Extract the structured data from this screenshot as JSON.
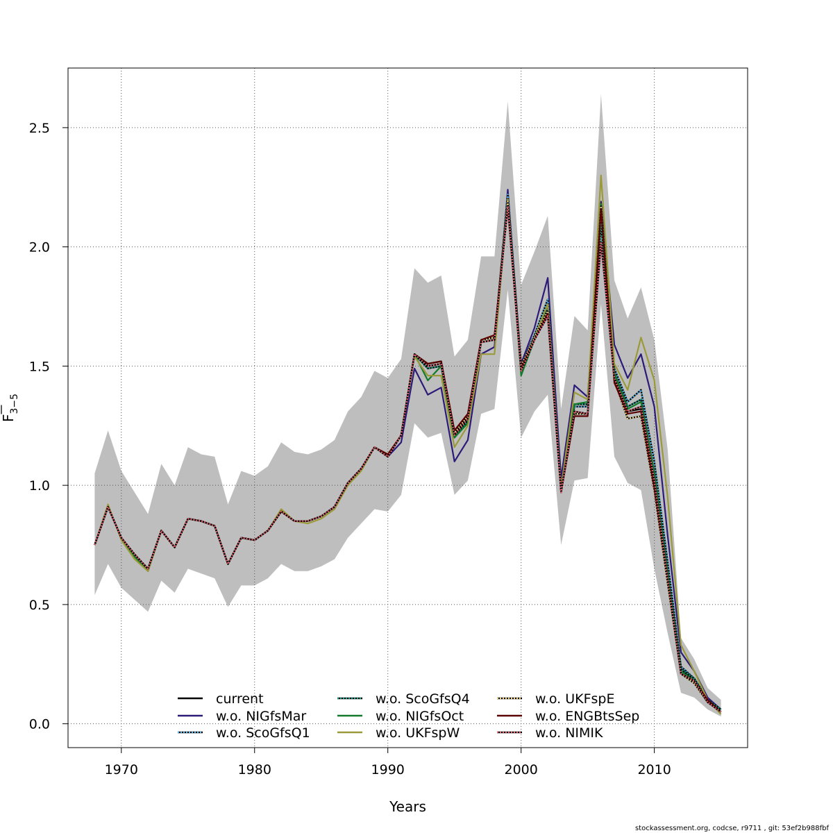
{
  "chart_data": {
    "type": "line",
    "xlabel": "Years",
    "ylabel_base": "F",
    "ylabel_sub": "3−5",
    "xlim": [
      1966,
      2017
    ],
    "ylim": [
      -0.1,
      2.75
    ],
    "xticks": [
      1970,
      1980,
      1990,
      2000,
      2010
    ],
    "yticks": [
      0.0,
      0.5,
      1.0,
      1.5,
      2.0,
      2.5
    ],
    "ytick_labels": [
      "0.0",
      "0.5",
      "1.0",
      "1.5",
      "2.0",
      "2.5"
    ],
    "grid": true,
    "legend_position": "bottom-center",
    "x": [
      1968,
      1969,
      1970,
      1971,
      1972,
      1973,
      1974,
      1975,
      1976,
      1977,
      1978,
      1979,
      1980,
      1981,
      1982,
      1983,
      1984,
      1985,
      1986,
      1987,
      1988,
      1989,
      1990,
      1991,
      1992,
      1993,
      1994,
      1995,
      1996,
      1997,
      1998,
      1999,
      2000,
      2001,
      2002,
      2003,
      2004,
      2005,
      2006,
      2007,
      2008,
      2009,
      2010,
      2011,
      2012,
      2013,
      2014,
      2015
    ],
    "band": {
      "color": "#bebebe",
      "upper": [
        1.05,
        1.23,
        1.06,
        0.97,
        0.88,
        1.09,
        1.0,
        1.16,
        1.13,
        1.12,
        0.92,
        1.06,
        1.04,
        1.08,
        1.18,
        1.14,
        1.13,
        1.15,
        1.19,
        1.31,
        1.37,
        1.48,
        1.45,
        1.53,
        1.91,
        1.85,
        1.88,
        1.54,
        1.61,
        1.96,
        1.96,
        2.61,
        1.84,
        1.98,
        2.13,
        1.32,
        1.71,
        1.65,
        2.64,
        1.86,
        1.7,
        1.83,
        1.61,
        1.15,
        0.36,
        0.27,
        0.15,
        0.1
      ],
      "lower": [
        0.54,
        0.67,
        0.57,
        0.52,
        0.47,
        0.6,
        0.55,
        0.65,
        0.63,
        0.61,
        0.49,
        0.58,
        0.58,
        0.61,
        0.67,
        0.64,
        0.64,
        0.66,
        0.69,
        0.78,
        0.84,
        0.9,
        0.89,
        0.96,
        1.26,
        1.2,
        1.22,
        0.96,
        1.02,
        1.3,
        1.32,
        1.82,
        1.2,
        1.31,
        1.38,
        0.75,
        1.02,
        1.03,
        1.76,
        1.12,
        1.01,
        0.98,
        0.65,
        0.38,
        0.13,
        0.11,
        0.06,
        0.03
      ]
    },
    "series": [
      {
        "name": "current",
        "color": "#000000",
        "dashed": false,
        "values": [
          0.75,
          0.91,
          0.78,
          0.71,
          0.65,
          0.81,
          0.74,
          0.86,
          0.85,
          0.83,
          0.67,
          0.78,
          0.77,
          0.81,
          0.89,
          0.85,
          0.85,
          0.87,
          0.91,
          1.01,
          1.07,
          1.16,
          1.12,
          1.21,
          1.55,
          1.51,
          1.52,
          1.22,
          1.29,
          1.61,
          1.62,
          2.19,
          1.5,
          1.62,
          1.73,
          0.98,
          1.3,
          1.3,
          2.17,
          1.45,
          1.31,
          1.32,
          1.02,
          0.62,
          0.22,
          0.19,
          0.1,
          0.06
        ]
      },
      {
        "name": "w.o. NIGfsMar",
        "color": "#2c1a78",
        "dashed": false,
        "values": [
          0.75,
          0.91,
          0.78,
          0.71,
          0.65,
          0.81,
          0.74,
          0.86,
          0.85,
          0.83,
          0.67,
          0.78,
          0.77,
          0.81,
          0.89,
          0.85,
          0.85,
          0.87,
          0.91,
          1.01,
          1.07,
          1.16,
          1.12,
          1.18,
          1.49,
          1.38,
          1.41,
          1.1,
          1.19,
          1.55,
          1.58,
          2.24,
          1.51,
          1.66,
          1.87,
          1.03,
          1.42,
          1.37,
          2.19,
          1.59,
          1.45,
          1.55,
          1.33,
          0.79,
          0.3,
          0.22,
          0.11,
          0.06
        ]
      },
      {
        "name": "w.o. ScoGfsQ1",
        "color": "#56b4e9",
        "dashed": true,
        "values": [
          0.75,
          0.91,
          0.78,
          0.71,
          0.65,
          0.81,
          0.74,
          0.86,
          0.85,
          0.83,
          0.67,
          0.78,
          0.77,
          0.81,
          0.89,
          0.85,
          0.85,
          0.87,
          0.91,
          1.01,
          1.07,
          1.16,
          1.12,
          1.21,
          1.55,
          1.5,
          1.51,
          1.21,
          1.28,
          1.6,
          1.61,
          2.22,
          1.5,
          1.63,
          1.78,
          0.99,
          1.33,
          1.33,
          2.1,
          1.49,
          1.35,
          1.4,
          1.1,
          0.68,
          0.24,
          0.19,
          0.1,
          0.06
        ]
      },
      {
        "name": "w.o. ScoGfsQ4",
        "color": "#16a08a",
        "dashed": true,
        "values": [
          0.75,
          0.91,
          0.78,
          0.71,
          0.65,
          0.81,
          0.74,
          0.86,
          0.85,
          0.83,
          0.67,
          0.78,
          0.77,
          0.81,
          0.89,
          0.85,
          0.85,
          0.87,
          0.91,
          1.01,
          1.07,
          1.16,
          1.12,
          1.21,
          1.55,
          1.49,
          1.5,
          1.2,
          1.27,
          1.6,
          1.61,
          2.2,
          1.49,
          1.62,
          1.74,
          0.98,
          1.34,
          1.34,
          2.1,
          1.47,
          1.33,
          1.36,
          1.05,
          0.64,
          0.23,
          0.19,
          0.1,
          0.06
        ]
      },
      {
        "name": "w.o. NIGfsOct",
        "color": "#137a2c",
        "dashed": false,
        "values": [
          0.75,
          0.91,
          0.78,
          0.7,
          0.64,
          0.81,
          0.74,
          0.86,
          0.85,
          0.83,
          0.67,
          0.78,
          0.77,
          0.81,
          0.89,
          0.85,
          0.85,
          0.87,
          0.91,
          1.01,
          1.07,
          1.16,
          1.12,
          1.21,
          1.55,
          1.44,
          1.5,
          1.2,
          1.26,
          1.6,
          1.61,
          2.2,
          1.46,
          1.61,
          1.72,
          0.98,
          1.34,
          1.35,
          2.18,
          1.47,
          1.32,
          1.35,
          1.05,
          0.63,
          0.22,
          0.18,
          0.1,
          0.05
        ]
      },
      {
        "name": "w.o. UKFspW",
        "color": "#9a9a3a",
        "dashed": false,
        "values": [
          0.75,
          0.92,
          0.77,
          0.69,
          0.64,
          0.81,
          0.74,
          0.86,
          0.85,
          0.83,
          0.67,
          0.78,
          0.77,
          0.81,
          0.9,
          0.85,
          0.84,
          0.86,
          0.9,
          1.0,
          1.06,
          1.16,
          1.13,
          1.21,
          1.54,
          1.46,
          1.46,
          1.16,
          1.25,
          1.55,
          1.55,
          2.2,
          1.48,
          1.62,
          1.76,
          0.99,
          1.39,
          1.36,
          2.3,
          1.51,
          1.4,
          1.62,
          1.44,
          0.95,
          0.33,
          0.22,
          0.1,
          0.04
        ]
      },
      {
        "name": "w.o. UKFspE",
        "color": "#f0d27a",
        "dashed": true,
        "values": [
          0.75,
          0.91,
          0.78,
          0.71,
          0.65,
          0.81,
          0.74,
          0.86,
          0.85,
          0.83,
          0.67,
          0.78,
          0.77,
          0.81,
          0.89,
          0.85,
          0.85,
          0.87,
          0.91,
          1.01,
          1.07,
          1.16,
          1.12,
          1.21,
          1.55,
          1.51,
          1.52,
          1.22,
          1.29,
          1.61,
          1.62,
          2.19,
          1.5,
          1.62,
          1.73,
          0.98,
          1.3,
          1.3,
          2.17,
          1.44,
          1.28,
          1.29,
          0.98,
          0.59,
          0.21,
          0.17,
          0.09,
          0.05
        ]
      },
      {
        "name": "w.o. ENGBtsSep",
        "color": "#5a0000",
        "dashed": false,
        "values": [
          0.75,
          0.91,
          0.78,
          0.71,
          0.65,
          0.81,
          0.74,
          0.86,
          0.85,
          0.83,
          0.67,
          0.78,
          0.77,
          0.81,
          0.89,
          0.85,
          0.85,
          0.87,
          0.91,
          1.01,
          1.07,
          1.16,
          1.13,
          1.21,
          1.55,
          1.51,
          1.52,
          1.23,
          1.3,
          1.61,
          1.63,
          2.17,
          1.49,
          1.61,
          1.72,
          0.97,
          1.29,
          1.29,
          2.16,
          1.43,
          1.3,
          1.31,
          0.99,
          0.61,
          0.21,
          0.18,
          0.1,
          0.05
        ]
      },
      {
        "name": "w.o. NIMIK",
        "color": "#e06070",
        "dashed": true,
        "values": [
          0.75,
          0.91,
          0.78,
          0.71,
          0.65,
          0.81,
          0.74,
          0.86,
          0.85,
          0.83,
          0.67,
          0.78,
          0.77,
          0.81,
          0.89,
          0.85,
          0.85,
          0.87,
          0.91,
          1.01,
          1.07,
          1.16,
          1.12,
          1.21,
          1.55,
          1.5,
          1.51,
          1.21,
          1.28,
          1.6,
          1.61,
          2.17,
          1.48,
          1.61,
          1.71,
          0.97,
          1.31,
          1.3,
          2.02,
          1.45,
          1.31,
          1.33,
          1.02,
          0.61,
          0.21,
          0.18,
          0.09,
          0.05
        ]
      }
    ]
  },
  "footer": "stockassessment.org, codcse, r9711 , git: 53ef2b988fbf"
}
